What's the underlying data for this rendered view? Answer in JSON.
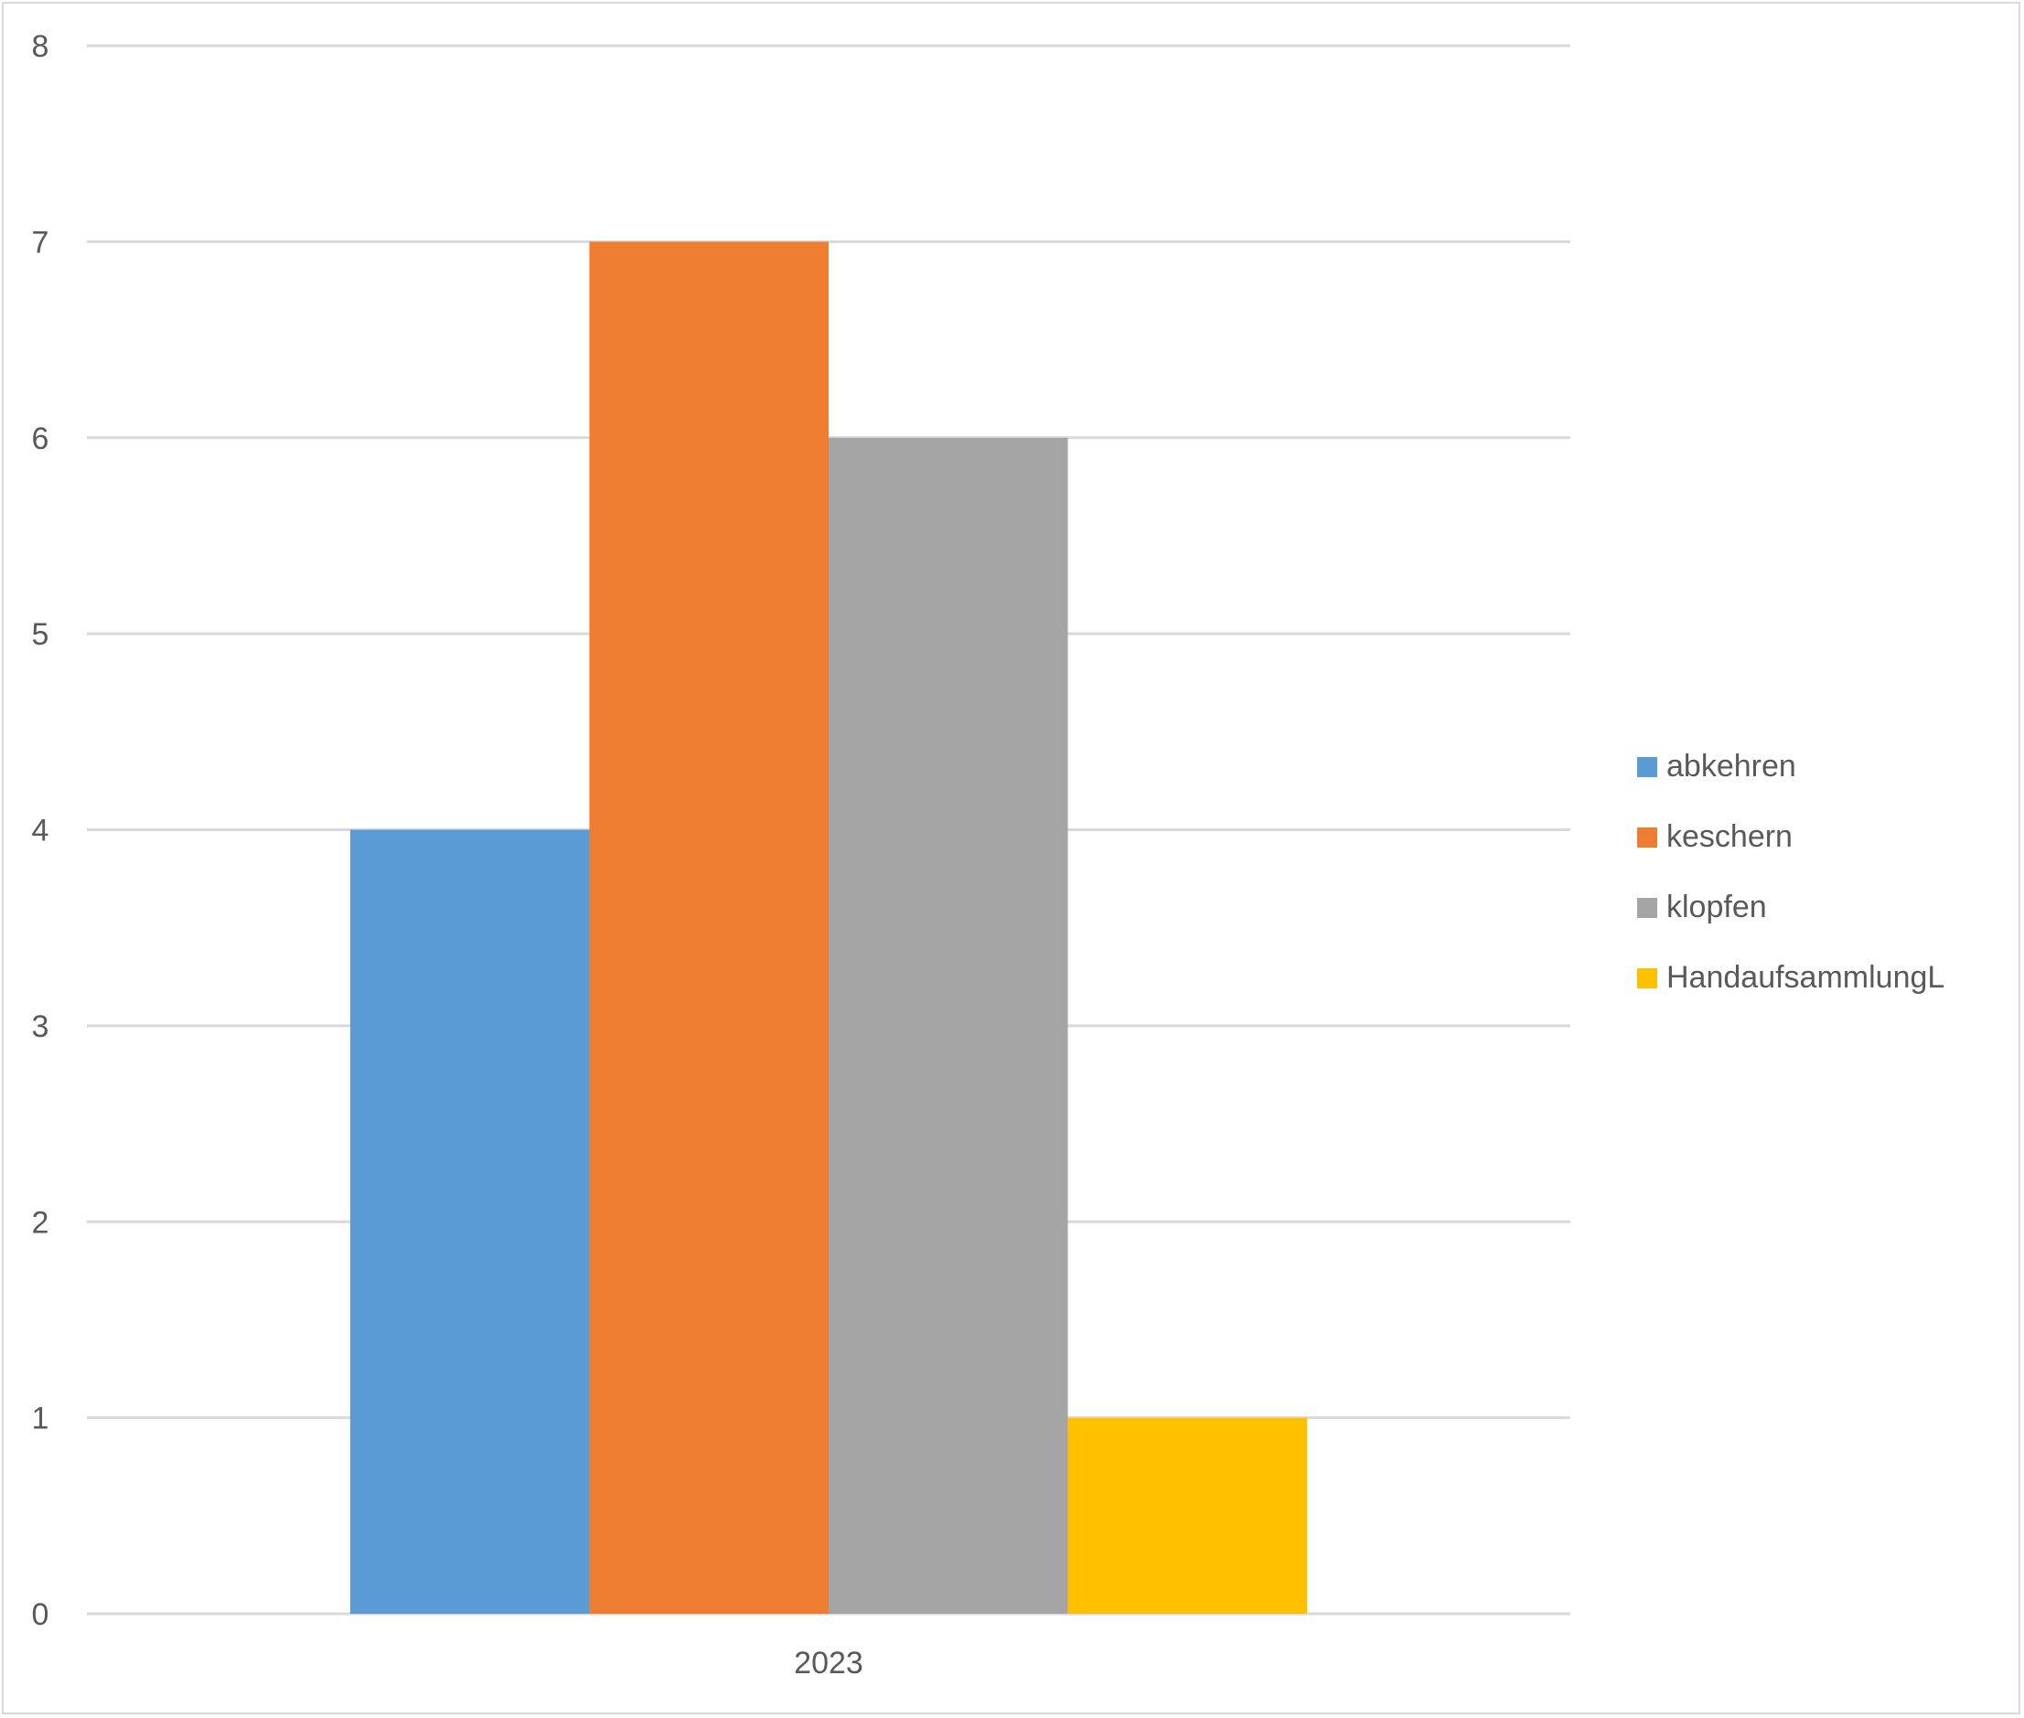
{
  "chart_data": {
    "type": "bar",
    "categories": [
      "2023"
    ],
    "series": [
      {
        "name": "abkehren",
        "values": [
          4
        ],
        "color": "#5b9bd5"
      },
      {
        "name": "keschern",
        "values": [
          7
        ],
        "color": "#ed7d31"
      },
      {
        "name": "klopfen",
        "values": [
          6
        ],
        "color": "#a5a5a5"
      },
      {
        "name": "HandaufsammlungL",
        "values": [
          1
        ],
        "color": "#ffc000"
      }
    ],
    "ylim": [
      0,
      8
    ],
    "yticks": [
      "0",
      "1",
      "2",
      "3",
      "4",
      "5",
      "6",
      "7",
      "8"
    ],
    "grid": true,
    "legend_position": "right",
    "title": "",
    "xlabel": "",
    "ylabel": ""
  }
}
